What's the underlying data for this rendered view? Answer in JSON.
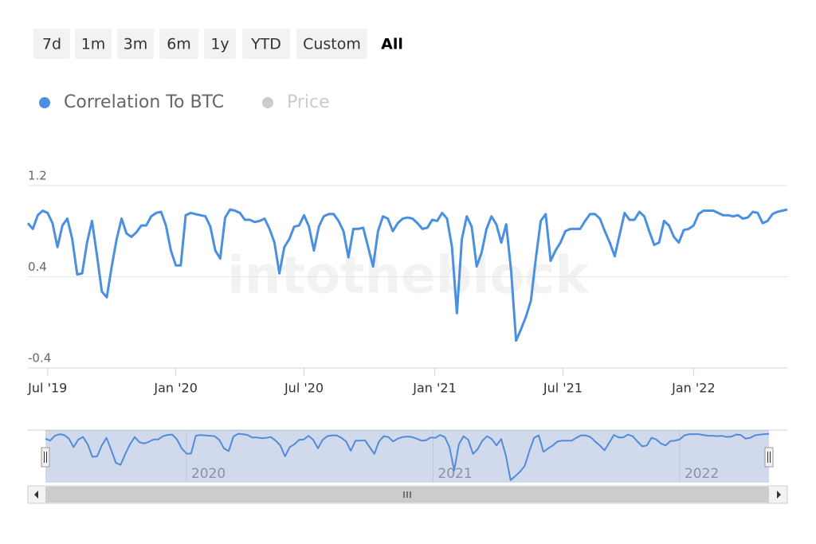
{
  "range_buttons": [
    "7d",
    "1m",
    "3m",
    "6m",
    "1y",
    "YTD",
    "Custom",
    "All"
  ],
  "selected_button": 7,
  "watermark": "intotheblock",
  "chart_data": {
    "type": "line",
    "series": [
      {
        "name": "Correlation To BTC",
        "color": "#4a8fe0",
        "values": [
          0.87,
          0.82,
          0.94,
          0.98,
          0.96,
          0.87,
          0.66,
          0.85,
          0.91,
          0.73,
          0.42,
          0.43,
          0.7,
          0.89,
          0.59,
          0.27,
          0.22,
          0.49,
          0.73,
          0.91,
          0.78,
          0.75,
          0.79,
          0.85,
          0.85,
          0.93,
          0.96,
          0.97,
          0.85,
          0.63,
          0.5,
          0.5,
          0.94,
          0.96,
          0.95,
          0.94,
          0.93,
          0.84,
          0.63,
          0.56,
          0.92,
          0.99,
          0.98,
          0.96,
          0.9,
          0.9,
          0.88,
          0.89,
          0.91,
          0.82,
          0.7,
          0.43,
          0.66,
          0.73,
          0.84,
          0.85,
          0.94,
          0.84,
          0.63,
          0.84,
          0.93,
          0.95,
          0.95,
          0.89,
          0.8,
          0.57,
          0.82,
          0.82,
          0.83,
          0.66,
          0.49,
          0.8,
          0.93,
          0.91,
          0.8,
          0.87,
          0.91,
          0.92,
          0.91,
          0.87,
          0.82,
          0.83,
          0.9,
          0.89,
          0.96,
          0.91,
          0.66,
          0.08,
          0.73,
          0.93,
          0.84,
          0.49,
          0.61,
          0.82,
          0.93,
          0.86,
          0.7,
          0.86,
          0.45,
          -0.16,
          -0.06,
          0.05,
          0.19,
          0.56,
          0.89,
          0.95,
          0.54,
          0.63,
          0.7,
          0.8,
          0.82,
          0.82,
          0.82,
          0.89,
          0.95,
          0.95,
          0.91,
          0.8,
          0.7,
          0.58,
          0.77,
          0.96,
          0.9,
          0.9,
          0.97,
          0.93,
          0.8,
          0.68,
          0.7,
          0.89,
          0.85,
          0.75,
          0.7,
          0.81,
          0.82,
          0.85,
          0.95,
          0.98,
          0.98,
          0.98,
          0.96,
          0.94,
          0.94,
          0.93,
          0.94,
          0.91,
          0.92,
          0.97,
          0.96,
          0.87,
          0.89,
          0.95,
          0.97,
          0.98,
          0.99
        ]
      },
      {
        "name": "Price",
        "color": "#cccccc",
        "visible": false
      }
    ],
    "xlim": [
      0,
      154
    ],
    "xticks": [
      {
        "value": 4,
        "label": "Jul '19"
      },
      {
        "value": 30,
        "label": "Jan '20"
      },
      {
        "value": 56,
        "label": "Jul '20"
      },
      {
        "value": 82.5,
        "label": "Jan '21"
      },
      {
        "value": 108.5,
        "label": "Jul '21"
      },
      {
        "value": 135,
        "label": "Jan '22"
      }
    ],
    "ylim": [
      -0.4,
      1.2
    ],
    "yticks": [
      -0.4,
      0.4,
      1.2
    ],
    "grid": true,
    "navigator_ticks": [
      {
        "value": 30,
        "label": "2020"
      },
      {
        "value": 82.5,
        "label": "2021"
      },
      {
        "value": 135,
        "label": "2022"
      }
    ]
  }
}
